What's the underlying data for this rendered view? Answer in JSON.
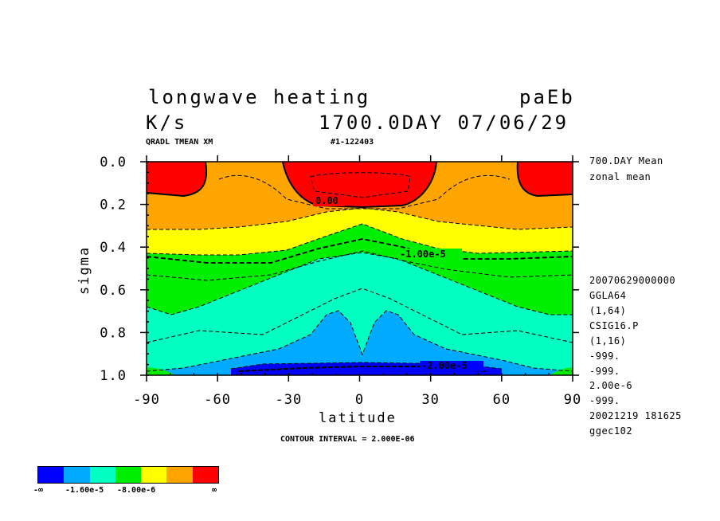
{
  "header": {
    "title": "longwave heating",
    "code": "paEb",
    "units": "K/s",
    "time": "1700.0DAY 07/06/29",
    "variable": "QRADL TMEAN XM",
    "run_id": "#1-122403"
  },
  "side_info": [
    "700.DAY Mean",
    "zonal mean",
    "20070629000000",
    "GGLA64",
    "(1,64)",
    "CSIG16.P",
    "(1,16)",
    "-999.",
    "-999.",
    "2.00e-6",
    "-999.",
    "20021219 181625",
    "ggec102"
  ],
  "contour_interval": "CONTOUR INTERVAL = 2.000E-06",
  "legend": {
    "colors": [
      "#0000ff",
      "#00aaff",
      "#00ffc0",
      "#00ee00",
      "#ffff00",
      "#ffa500",
      "#ff0000"
    ],
    "labels": [
      "-∞",
      "-1.60e-5",
      "-8.00e-6",
      "∞"
    ]
  },
  "chart_data": {
    "type": "contour",
    "xlabel": "latitude",
    "ylabel": "sigma",
    "xlim": [
      -90,
      90
    ],
    "ylim": [
      1.0,
      0.0
    ],
    "xticks": [
      "-90",
      "-60",
      "-30",
      "0",
      "30",
      "60",
      "90"
    ],
    "yticks": [
      "0.0",
      "0.2",
      "0.4",
      "0.6",
      "0.8",
      "1.0"
    ],
    "contour_labels": [
      "0.00",
      "-1.00e-5",
      "-2.00e-5"
    ],
    "contour_interval": 2e-06
  }
}
